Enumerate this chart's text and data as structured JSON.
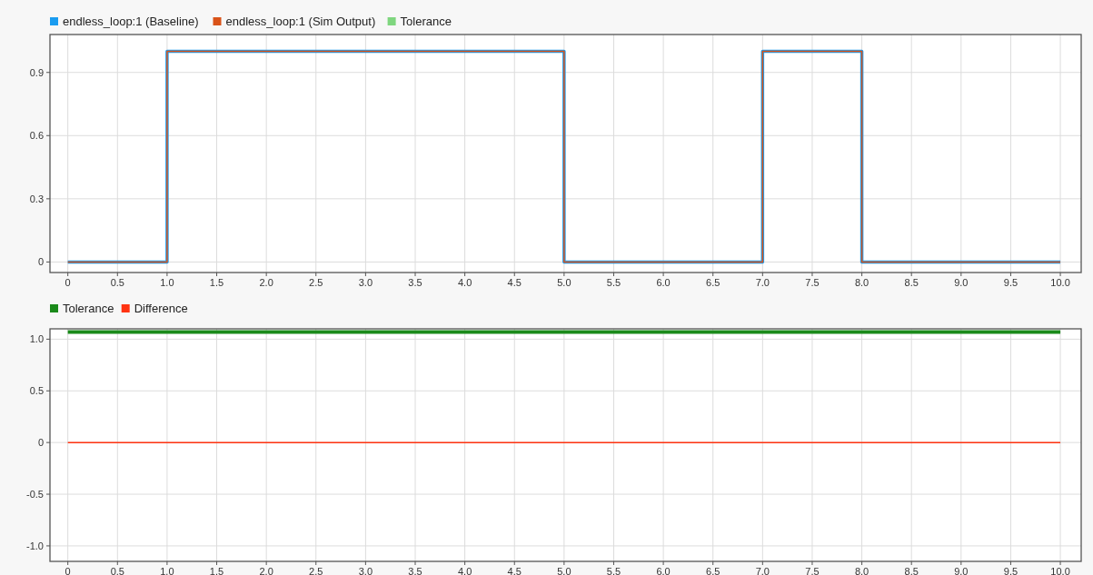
{
  "chart_data": [
    {
      "type": "step",
      "x": [
        0,
        1,
        5,
        7,
        8,
        10
      ],
      "xlim": [
        -0.18,
        10.21
      ],
      "ylim": [
        -0.05,
        1.08
      ],
      "xticks": [
        0,
        0.5,
        {
          "value": 1,
          "label": "1.0"
        },
        1.5,
        {
          "value": 2,
          "label": "2.0"
        },
        2.5,
        {
          "value": 3,
          "label": "3.0"
        },
        3.5,
        {
          "value": 4,
          "label": "4.0"
        },
        4.5,
        {
          "value": 5,
          "label": "5.0"
        },
        5.5,
        {
          "value": 6,
          "label": "6.0"
        },
        6.5,
        {
          "value": 7,
          "label": "7.0"
        },
        7.5,
        {
          "value": 8,
          "label": "8.0"
        },
        8.5,
        {
          "value": 9,
          "label": "9.0"
        },
        9.5,
        {
          "value": 10,
          "label": "10.0"
        }
      ],
      "yticks": [
        0,
        0.3,
        0.6,
        0.9
      ],
      "grid": true,
      "legend": "top left",
      "series": [
        {
          "name": "endless_loop:1 (Baseline)",
          "color": "#1a9cf0",
          "values": [
            0,
            1,
            0,
            1,
            0,
            0
          ]
        },
        {
          "name": "endless_loop:1 (Sim Output)",
          "color": "#d95319",
          "values": [
            0,
            1,
            0,
            1,
            0,
            0
          ]
        },
        {
          "name": "Tolerance",
          "color": "#7fd67f",
          "values": [
            null,
            null,
            null,
            null,
            null,
            null
          ]
        }
      ]
    },
    {
      "type": "line",
      "x": [
        0,
        10
      ],
      "xlim": [
        -0.18,
        10.21
      ],
      "ylim": [
        -1.15,
        1.1
      ],
      "xticks": [
        0,
        0.5,
        {
          "value": 1,
          "label": "1.0"
        },
        1.5,
        {
          "value": 2,
          "label": "2.0"
        },
        2.5,
        {
          "value": 3,
          "label": "3.0"
        },
        3.5,
        {
          "value": 4,
          "label": "4.0"
        },
        4.5,
        {
          "value": 5,
          "label": "5.0"
        },
        5.5,
        {
          "value": 6,
          "label": "6.0"
        },
        6.5,
        {
          "value": 7,
          "label": "7.0"
        },
        7.5,
        {
          "value": 8,
          "label": "8.0"
        },
        8.5,
        {
          "value": 9,
          "label": "9.0"
        },
        9.5,
        {
          "value": 10,
          "label": "10.0"
        }
      ],
      "yticks": [
        {
          "value": -1,
          "label": "-1.0"
        },
        -0.5,
        0,
        0.5,
        {
          "value": 1,
          "label": "1.0"
        }
      ],
      "grid": true,
      "legend": "top left",
      "series": [
        {
          "name": "Tolerance",
          "color": "#1a8a1a",
          "values": [
            1.07,
            1.07
          ]
        },
        {
          "name": "Difference",
          "color": "#ff3311",
          "values": [
            0,
            0
          ]
        }
      ]
    }
  ]
}
